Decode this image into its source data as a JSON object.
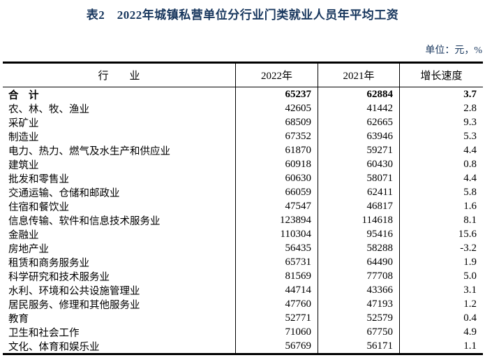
{
  "page": {
    "title": "表2　2022年城镇私营单位分行业门类就业人员年平均工资",
    "unit_note": "单位：元，%"
  },
  "colors": {
    "heading_text": "#17365d",
    "table_text": "#000000",
    "border": "#000000",
    "background": "#ffffff"
  },
  "table": {
    "columns": [
      "行　　业",
      "2022年",
      "2021年",
      "增长速度"
    ],
    "rows": [
      {
        "industry": "合　计",
        "y2022": "65237",
        "y2021": "62884",
        "growth": "3.7",
        "bold": true
      },
      {
        "industry": "农、林、牧、渔业",
        "y2022": "42605",
        "y2021": "41442",
        "growth": "2.8",
        "bold": false
      },
      {
        "industry": "采矿业",
        "y2022": "68509",
        "y2021": "62665",
        "growth": "9.3",
        "bold": false
      },
      {
        "industry": "制造业",
        "y2022": "67352",
        "y2021": "63946",
        "growth": "5.3",
        "bold": false
      },
      {
        "industry": "电力、热力、燃气及水生产和供应业",
        "y2022": "61870",
        "y2021": "59271",
        "growth": "4.4",
        "bold": false
      },
      {
        "industry": "建筑业",
        "y2022": "60918",
        "y2021": "60430",
        "growth": "0.8",
        "bold": false
      },
      {
        "industry": "批发和零售业",
        "y2022": "60630",
        "y2021": "58071",
        "growth": "4.4",
        "bold": false
      },
      {
        "industry": "交通运输、仓储和邮政业",
        "y2022": "66059",
        "y2021": "62411",
        "growth": "5.8",
        "bold": false
      },
      {
        "industry": "住宿和餐饮业",
        "y2022": "47547",
        "y2021": "46817",
        "growth": "1.6",
        "bold": false
      },
      {
        "industry": "信息传输、软件和信息技术服务业",
        "y2022": "123894",
        "y2021": "114618",
        "growth": "8.1",
        "bold": false
      },
      {
        "industry": "金融业",
        "y2022": "110304",
        "y2021": "95416",
        "growth": "15.6",
        "bold": false
      },
      {
        "industry": "房地产业",
        "y2022": "56435",
        "y2021": "58288",
        "growth": "-3.2",
        "bold": false
      },
      {
        "industry": "租赁和商务服务业",
        "y2022": "65731",
        "y2021": "64490",
        "growth": "1.9",
        "bold": false
      },
      {
        "industry": "科学研究和技术服务业",
        "y2022": "81569",
        "y2021": "77708",
        "growth": "5.0",
        "bold": false
      },
      {
        "industry": "水利、环境和公共设施管理业",
        "y2022": "44714",
        "y2021": "43366",
        "growth": "3.1",
        "bold": false
      },
      {
        "industry": "居民服务、修理和其他服务业",
        "y2022": "47760",
        "y2021": "47193",
        "growth": "1.2",
        "bold": false
      },
      {
        "industry": "教育",
        "y2022": "52771",
        "y2021": "52579",
        "growth": "0.4",
        "bold": false
      },
      {
        "industry": "卫生和社会工作",
        "y2022": "71060",
        "y2021": "67750",
        "growth": "4.9",
        "bold": false
      },
      {
        "industry": "文化、体育和娱乐业",
        "y2022": "56769",
        "y2021": "56171",
        "growth": "1.1",
        "bold": false
      }
    ]
  }
}
